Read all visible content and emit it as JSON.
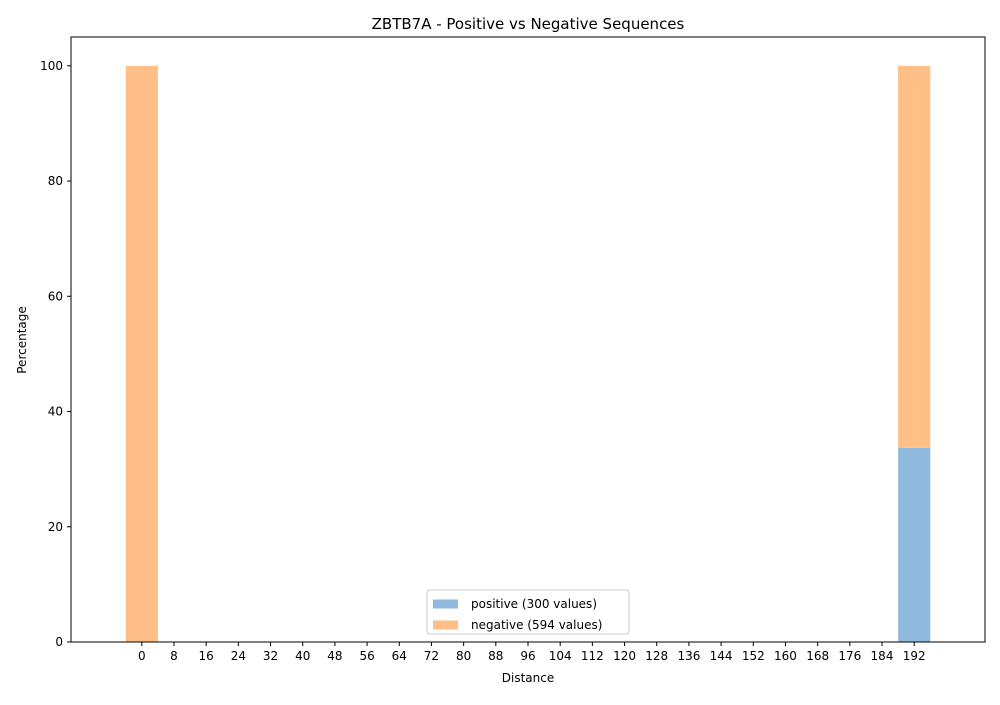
{
  "chart_data": {
    "type": "bar",
    "title": "ZBTB7A - Positive vs Negative Sequences",
    "xlabel": "Distance",
    "ylabel": "Percentage",
    "ylim": [
      0,
      105
    ],
    "xlim": [
      -17.6,
      209.6
    ],
    "x_ticks": [
      0,
      8,
      16,
      24,
      32,
      40,
      48,
      56,
      64,
      72,
      80,
      88,
      96,
      104,
      112,
      120,
      128,
      136,
      144,
      152,
      160,
      168,
      176,
      184,
      192
    ],
    "y_ticks": [
      0,
      20,
      40,
      60,
      80,
      100
    ],
    "bar_width": 8,
    "grid": false,
    "legend_position": "lower center",
    "series": [
      {
        "name": "positive (300 values)",
        "color": "#8fbadd",
        "points": [
          {
            "x": 0,
            "y": 0
          },
          {
            "x": 192,
            "y": 33.7
          }
        ]
      },
      {
        "name": "negative (594 values)",
        "color": "#ffbf87",
        "points": [
          {
            "x": 0,
            "y": 100
          },
          {
            "x": 192,
            "y": 66.3
          }
        ]
      }
    ]
  }
}
